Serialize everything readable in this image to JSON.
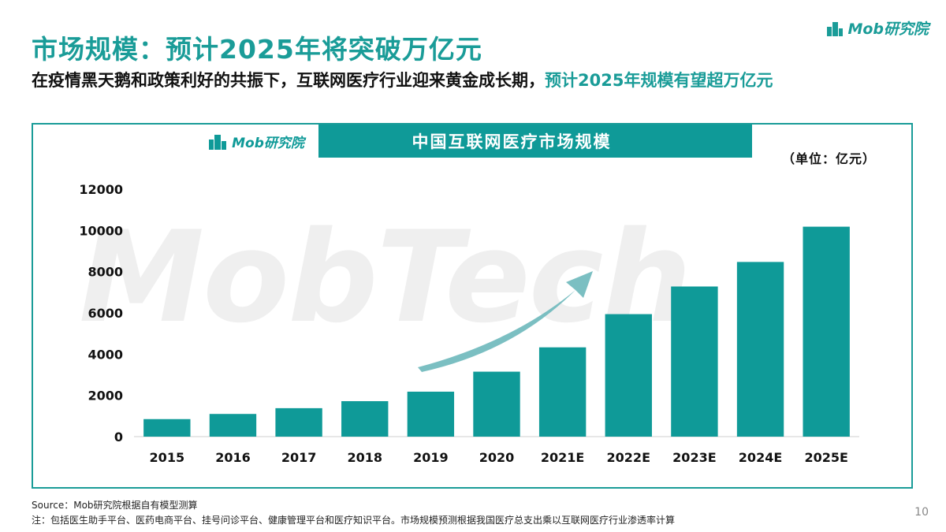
{
  "header": {
    "title": "市场规模：预计2025年将突破万亿元",
    "subtitle_main": "在疫情黑天鹅和政策利好的共振下，互联网医疗行业迎来黄金成长期，",
    "subtitle_highlight": "预计2025年规模有望超万亿元",
    "logo_text": "Mob研究院"
  },
  "chart_banner": {
    "logo_text": "Mob研究院",
    "title": "中国互联网医疗市场规模"
  },
  "unit_label": "（单位：亿元）",
  "watermark": "MobTech",
  "colors": {
    "accent": "#1a9c98",
    "bar": "#0f9a98",
    "arrow": "#6db8bb"
  },
  "chart_data": {
    "type": "bar",
    "categories": [
      "2015",
      "2016",
      "2017",
      "2018",
      "2019",
      "2020",
      "2021E",
      "2022E",
      "2023E",
      "2024E",
      "2025E"
    ],
    "values": [
      850,
      1100,
      1380,
      1720,
      2180,
      3150,
      4330,
      5940,
      7280,
      8470,
      10180
    ],
    "ylim": [
      0,
      12000
    ],
    "yticks": [
      0,
      2000,
      4000,
      6000,
      8000,
      10000,
      12000
    ],
    "grid": false
  },
  "footer": {
    "source": "Source：Mob研究院根据自有模型测算",
    "note": "注：包括医生助手平台、医药电商平台、挂号问诊平台、健康管理平台和医疗知识平台。市场规模预测根据我国医疗总支出乘以互联网医疗行业渗透率计算",
    "page_number": "10"
  }
}
